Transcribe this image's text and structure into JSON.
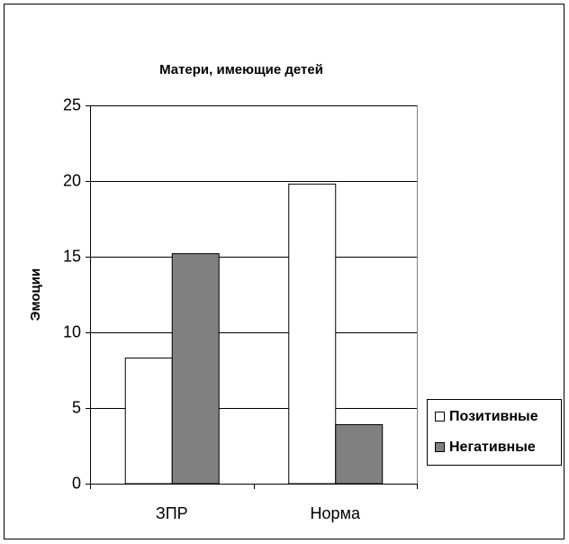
{
  "chart_data": {
    "type": "bar",
    "title": "Матери, имеющие детей",
    "y_label": "Эмоции",
    "categories": [
      "ЗПР",
      "Норма"
    ],
    "series": [
      {
        "name": "Позитивные",
        "color": "#ffffff",
        "values": [
          8.3,
          19.8
        ]
      },
      {
        "name": "Негативные",
        "color": "#808080",
        "values": [
          15.2,
          3.9
        ]
      }
    ],
    "ylim": [
      0,
      25
    ],
    "yticks": [
      0,
      5,
      10,
      15,
      20,
      25
    ],
    "grid": true,
    "legend": "right"
  }
}
